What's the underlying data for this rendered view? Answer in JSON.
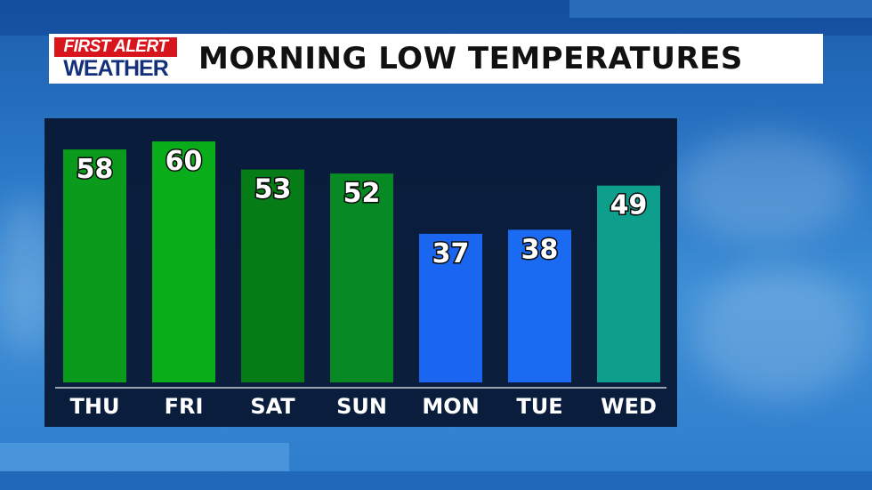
{
  "logo": {
    "line1": "FIRST ALERT",
    "line2": "WEATHER"
  },
  "header": {
    "title": "MORNING LOW TEMPERATURES"
  },
  "chart_data": {
    "type": "bar",
    "title": "MORNING LOW TEMPERATURES",
    "categories": [
      "THU",
      "FRI",
      "SAT",
      "SUN",
      "MON",
      "TUE",
      "WED"
    ],
    "values": [
      58,
      60,
      53,
      52,
      37,
      38,
      49
    ],
    "bar_colors": [
      "#0a9a1c",
      "#09ad1a",
      "#067c16",
      "#078a24",
      "#1a66f0",
      "#1a6af2",
      "#0e9e8c"
    ],
    "ylim": [
      0,
      62
    ],
    "grid": false,
    "legend": "none"
  }
}
